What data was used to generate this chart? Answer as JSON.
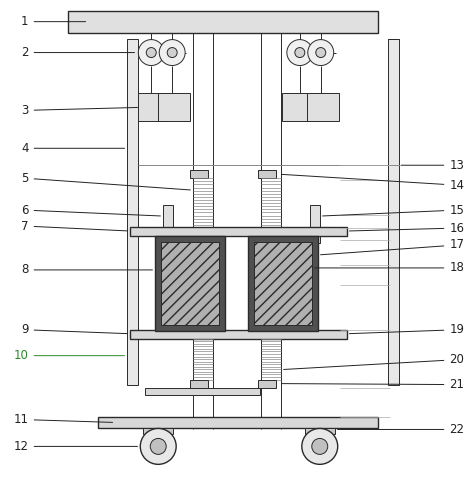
{
  "bg_color": "#ffffff",
  "line_color": "#2a2a2a",
  "dark_fill": "#555555",
  "mid_fill": "#aaaaaa",
  "light_fill": "#e0e0e0",
  "green_color": "#2a8a2a",
  "fig_width": 4.75,
  "fig_height": 4.87,
  "dpi": 100
}
